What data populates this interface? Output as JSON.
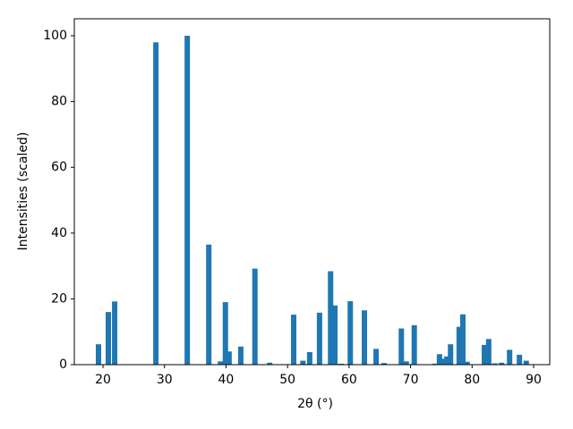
{
  "chart_data": {
    "type": "bar",
    "xlabel": "2θ (°)",
    "ylabel": "Intensities (scaled)",
    "x": [
      19.27,
      20.87,
      21.9,
      28.6,
      33.7,
      37.2,
      39.1,
      39.9,
      40.5,
      42.4,
      44.7,
      47.1,
      51.0,
      52.5,
      53.6,
      55.2,
      57.0,
      57.7,
      58.7,
      60.2,
      62.5,
      64.4,
      65.7,
      68.5,
      69.3,
      70.6,
      74.0,
      74.7,
      75.3,
      75.9,
      76.5,
      77.9,
      78.5,
      79.2,
      82.0,
      82.7,
      83.7,
      84.8,
      86.1,
      87.7,
      88.8
    ],
    "values": [
      6.2,
      16,
      19.2,
      98,
      100,
      36.5,
      1,
      19,
      4,
      5.5,
      29.2,
      0.6,
      15.2,
      1.2,
      3.8,
      15.8,
      28.4,
      18,
      0.3,
      19.3,
      16.5,
      4.8,
      0.5,
      11,
      1,
      12,
      0.3,
      3.2,
      1.8,
      2.5,
      6.2,
      11.5,
      15.3,
      0.9,
      6,
      7.8,
      0.4,
      0.6,
      4.5,
      3,
      1.2
    ],
    "color": "#1f77b4",
    "xlim": [
      15.34,
      92.62
    ],
    "xticks": [
      20,
      30,
      40,
      50,
      60,
      70,
      80,
      90
    ],
    "ylim": [
      0,
      105.16
    ],
    "yticks": [
      0,
      20,
      40,
      60,
      80,
      100
    ],
    "grid": false
  }
}
